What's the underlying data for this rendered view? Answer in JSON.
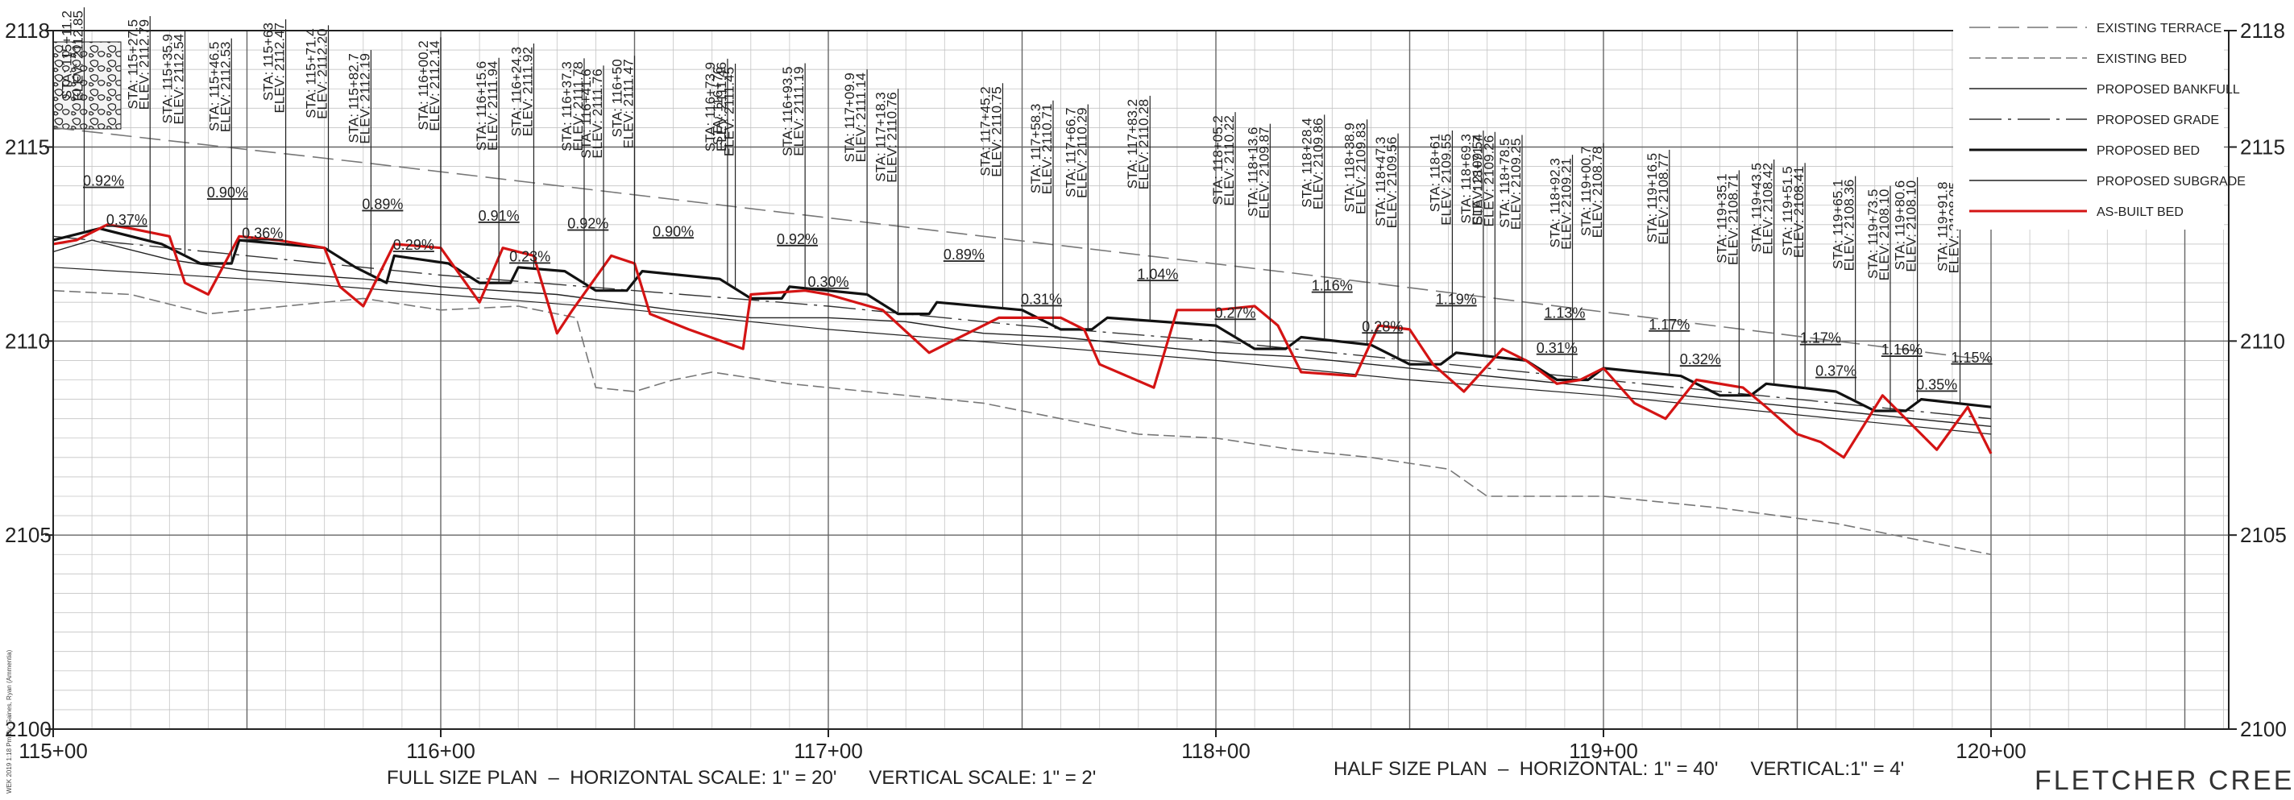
{
  "sheet": {
    "project_title": "FLETCHER CREEK",
    "scale_full": "FULL SIZE PLAN  –  HORIZONTAL SCALE: 1\" = 20'      VERTICAL SCALE: 1\" = 2'",
    "scale_half": "HALF SIZE PLAN  –  HORIZONTAL: 1\" = 40'      VERTICAL:1\" = 4'",
    "file_stamp": "WEK 2019 1:18 Pm By: Gaines, Ryan (Ammentia)"
  },
  "colors": {
    "proposed_bed": "#111111",
    "as_built_bed": "#d41414",
    "existing": "#777777",
    "grid_minor": "#c4c4c4",
    "grid_major": "#666666"
  },
  "chart_data": {
    "type": "line",
    "title": "",
    "xlabel": "",
    "ylabel": "",
    "xlim": [
      115.0,
      120.6
    ],
    "ylim": [
      2100,
      2118
    ],
    "x_ticks": [
      "115+00",
      "116+00",
      "117+00",
      "118+00",
      "119+00",
      "120+00"
    ],
    "y_ticks_left": [
      "2118",
      "2115",
      "2110",
      "2105",
      "2100"
    ],
    "y_ticks_right": [
      "2118",
      "2115",
      "2110",
      "2105",
      "2100"
    ],
    "grid": true,
    "legend_position": "top-right",
    "legend": [
      {
        "label": "EXISTING TERRACE",
        "series": "existing_terrace"
      },
      {
        "label": "EXISTING BED",
        "series": "existing_bed"
      },
      {
        "label": "PROPOSED BANKFULL",
        "series": "proposed_bankfull"
      },
      {
        "label": "PROPOSED GRADE",
        "series": "proposed_grade"
      },
      {
        "label": "PROPOSED BED",
        "series": "proposed_bed"
      },
      {
        "label": "PROPOSED SUBGRADE",
        "series": "proposed_subgrade"
      },
      {
        "label": "AS-BUILT BED",
        "series": "as_built_bed"
      }
    ],
    "series": [
      {
        "key": "existing_terrace",
        "name": "EXISTING TERRACE",
        "x": [
          115.0,
          115.8,
          116.6,
          117.4,
          118.2,
          119.0,
          119.6,
          120.0
        ],
        "y": [
          2115.5,
          2114.6,
          2113.65,
          2112.7,
          2111.75,
          2110.75,
          2110.0,
          2109.5
        ]
      },
      {
        "key": "existing_bed",
        "name": "EXISTING BED",
        "x": [
          115.0,
          115.2,
          115.4,
          115.6,
          115.8,
          116.0,
          116.2,
          116.35,
          116.4,
          116.5,
          116.6,
          116.7,
          116.9,
          117.2,
          117.4,
          117.6,
          117.8,
          118.0,
          118.2,
          118.4,
          118.6,
          118.7,
          119.0,
          119.3,
          119.6,
          119.8,
          120.0
        ],
        "y": [
          2111.3,
          2111.2,
          2110.7,
          2110.9,
          2111.1,
          2110.8,
          2110.9,
          2110.6,
          2108.8,
          2108.7,
          2109.0,
          2109.2,
          2108.9,
          2108.6,
          2108.4,
          2108.0,
          2107.6,
          2107.5,
          2107.2,
          2107.0,
          2106.7,
          2106.0,
          2106.0,
          2105.7,
          2105.3,
          2104.9,
          2104.5
        ]
      },
      {
        "key": "proposed_bankfull",
        "name": "PROPOSED BANKFULL",
        "x": [
          115.0,
          115.1,
          115.3,
          115.5,
          115.8,
          116.0,
          116.3,
          116.6,
          116.8,
          117.0,
          117.2,
          117.4,
          117.6,
          117.8,
          118.0,
          118.2,
          118.4,
          118.6,
          118.8,
          119.0,
          119.2,
          119.4,
          119.6,
          119.8,
          120.0
        ],
        "y": [
          2112.3,
          2112.6,
          2112.1,
          2111.8,
          2111.6,
          2111.4,
          2111.2,
          2110.8,
          2110.6,
          2110.6,
          2110.5,
          2110.2,
          2110.1,
          2109.9,
          2109.7,
          2109.6,
          2109.4,
          2109.2,
          2109.0,
          2108.8,
          2108.6,
          2108.4,
          2108.2,
          2108.0,
          2107.8
        ]
      },
      {
        "key": "proposed_grade",
        "name": "PROPOSED GRADE",
        "x": [
          115.0,
          115.5,
          116.0,
          116.5,
          117.0,
          117.5,
          118.0,
          118.5,
          119.0,
          119.5,
          120.0
        ],
        "y": [
          2112.7,
          2112.2,
          2111.7,
          2111.3,
          2110.9,
          2110.4,
          2110.0,
          2109.5,
          2109.0,
          2108.5,
          2108.0
        ]
      },
      {
        "key": "proposed_bed",
        "name": "PROPOSED BED",
        "x": [
          115.0,
          115.12,
          115.28,
          115.38,
          115.46,
          115.48,
          115.7,
          115.78,
          115.86,
          115.88,
          116.02,
          116.1,
          116.18,
          116.2,
          116.32,
          116.4,
          116.48,
          116.52,
          116.72,
          116.8,
          116.88,
          116.9,
          117.1,
          117.18,
          117.26,
          117.28,
          117.5,
          117.6,
          117.68,
          117.72,
          118.0,
          118.1,
          118.18,
          118.22,
          118.4,
          118.5,
          118.58,
          118.62,
          118.8,
          118.88,
          118.96,
          119.0,
          119.2,
          119.3,
          119.38,
          119.42,
          119.6,
          119.7,
          119.78,
          119.82,
          120.0
        ],
        "y": [
          2112.6,
          2112.9,
          2112.5,
          2112.0,
          2112.0,
          2112.6,
          2112.4,
          2111.9,
          2111.5,
          2112.2,
          2112.0,
          2111.5,
          2111.5,
          2111.9,
          2111.8,
          2111.3,
          2111.3,
          2111.8,
          2111.6,
          2111.1,
          2111.1,
          2111.4,
          2111.2,
          2110.7,
          2110.7,
          2111.0,
          2110.8,
          2110.3,
          2110.3,
          2110.6,
          2110.4,
          2109.8,
          2109.8,
          2110.1,
          2109.9,
          2109.4,
          2109.4,
          2109.7,
          2109.5,
          2109.0,
          2109.0,
          2109.3,
          2109.1,
          2108.6,
          2108.6,
          2108.9,
          2108.7,
          2108.2,
          2108.2,
          2108.5,
          2108.3
        ]
      },
      {
        "key": "proposed_subgrade",
        "name": "PROPOSED SUBGRADE",
        "x": [
          115.0,
          115.5,
          116.0,
          116.5,
          117.0,
          117.5,
          118.0,
          118.5,
          119.0,
          119.5,
          120.0
        ],
        "y": [
          2111.9,
          2111.6,
          2111.2,
          2110.8,
          2110.3,
          2109.9,
          2109.5,
          2109.0,
          2108.6,
          2108.1,
          2107.6
        ]
      },
      {
        "key": "as_built_bed",
        "name": "AS-BUILT BED",
        "x": [
          115.0,
          115.06,
          115.14,
          115.2,
          115.3,
          115.34,
          115.4,
          115.48,
          115.58,
          115.7,
          115.74,
          115.8,
          115.88,
          116.0,
          116.1,
          116.16,
          116.24,
          116.3,
          116.34,
          116.44,
          116.5,
          116.54,
          116.64,
          116.78,
          116.8,
          116.94,
          117.0,
          117.14,
          117.26,
          117.3,
          117.44,
          117.6,
          117.66,
          117.7,
          117.84,
          117.9,
          118.0,
          118.1,
          118.16,
          118.22,
          118.36,
          118.42,
          118.5,
          118.56,
          118.64,
          118.74,
          118.8,
          118.88,
          118.94,
          119.0,
          119.08,
          119.16,
          119.24,
          119.36,
          119.42,
          119.5,
          119.56,
          119.62,
          119.72,
          119.78,
          119.86,
          119.94,
          120.0
        ],
        "y": [
          2112.5,
          2112.6,
          2113.0,
          2112.9,
          2112.7,
          2111.5,
          2111.2,
          2112.7,
          2112.6,
          2112.4,
          2111.4,
          2110.9,
          2112.5,
          2112.4,
          2111.0,
          2112.4,
          2112.2,
          2110.2,
          2110.8,
          2112.2,
          2112.0,
          2110.7,
          2110.3,
          2109.8,
          2111.2,
          2111.3,
          2111.2,
          2110.8,
          2109.7,
          2109.9,
          2110.6,
          2110.6,
          2110.3,
          2109.4,
          2108.8,
          2110.8,
          2110.8,
          2110.9,
          2110.4,
          2109.2,
          2109.1,
          2110.4,
          2110.3,
          2109.4,
          2108.7,
          2109.8,
          2109.5,
          2108.9,
          2109.0,
          2109.3,
          2108.4,
          2108.0,
          2109.0,
          2108.8,
          2108.3,
          2107.6,
          2107.4,
          2107.0,
          2108.6,
          2108.0,
          2107.2,
          2108.3,
          2107.1
        ]
      }
    ],
    "slope_labels": [
      {
        "text": "0.92%",
        "x": 115.13,
        "y": 2114.0
      },
      {
        "text": "0.90%",
        "x": 115.45,
        "y": 2113.7
      },
      {
        "text": "0.89%",
        "x": 115.85,
        "y": 2113.4
      },
      {
        "text": "0.91%",
        "x": 116.15,
        "y": 2113.1
      },
      {
        "text": "0.92%",
        "x": 116.38,
        "y": 2112.9
      },
      {
        "text": "0.90%",
        "x": 116.6,
        "y": 2112.7
      },
      {
        "text": "0.92%",
        "x": 116.92,
        "y": 2112.5
      },
      {
        "text": "0.89%",
        "x": 117.35,
        "y": 2112.1
      },
      {
        "text": "1.04%",
        "x": 117.85,
        "y": 2111.6
      },
      {
        "text": "1.16%",
        "x": 118.3,
        "y": 2111.3
      },
      {
        "text": "1.19%",
        "x": 118.62,
        "y": 2110.95
      },
      {
        "text": "1.13%",
        "x": 118.9,
        "y": 2110.6
      },
      {
        "text": "1.17%",
        "x": 119.17,
        "y": 2110.3
      },
      {
        "text": "1.17%",
        "x": 119.56,
        "y": 2109.95
      },
      {
        "text": "1.16%",
        "x": 119.77,
        "y": 2109.65
      },
      {
        "text": "1.15%",
        "x": 119.95,
        "y": 2109.45
      },
      {
        "text": "0.37%",
        "x": 115.19,
        "y": 2113.0
      },
      {
        "text": "0.36%",
        "x": 115.54,
        "y": 2112.65
      },
      {
        "text": "0.29%",
        "x": 115.93,
        "y": 2112.35
      },
      {
        "text": "0.23%",
        "x": 116.23,
        "y": 2112.05
      },
      {
        "text": "0.30%",
        "x": 117.0,
        "y": 2111.4
      },
      {
        "text": "0.31%",
        "x": 117.55,
        "y": 2110.95
      },
      {
        "text": "0.27%",
        "x": 118.05,
        "y": 2110.6
      },
      {
        "text": "0.28%",
        "x": 118.43,
        "y": 2110.25
      },
      {
        "text": "0.31%",
        "x": 118.88,
        "y": 2109.7
      },
      {
        "text": "0.32%",
        "x": 119.25,
        "y": 2109.4
      },
      {
        "text": "0.37%",
        "x": 119.6,
        "y": 2109.1
      },
      {
        "text": "0.35%",
        "x": 119.86,
        "y": 2108.75
      }
    ],
    "annotations": [
      {
        "x": 115.08,
        "sta": "STA: 115+11.2",
        "elev": "ELEV: 2112.85"
      },
      {
        "x": 115.25,
        "sta": "STA: 115+27.5",
        "elev": "ELEV: 2112.79"
      },
      {
        "x": 115.34,
        "sta": "STA: 115+35.9",
        "elev": "ELEV: 2112.54"
      },
      {
        "x": 115.46,
        "sta": "STA: 115+46.5",
        "elev": "ELEV: 2112.53"
      },
      {
        "x": 115.6,
        "sta": "STA: 115+63",
        "elev": "ELEV: 2112.47"
      },
      {
        "x": 115.71,
        "sta": "STA: 115+71.4",
        "elev": "ELEV: 2112.20"
      },
      {
        "x": 115.82,
        "sta": "STA: 115+82.7",
        "elev": "ELEV: 2112.19"
      },
      {
        "x": 116.0,
        "sta": "STA: 116+00.2",
        "elev": "ELEV: 2112.14"
      },
      {
        "x": 116.15,
        "sta": "STA: 116+15.6",
        "elev": "ELEV: 2111.94"
      },
      {
        "x": 116.24,
        "sta": "STA: 116+24.3",
        "elev": "ELEV: 2111.92"
      },
      {
        "x": 116.37,
        "sta": "STA: 116+37.3",
        "elev": "ELEV: 2111.78"
      },
      {
        "x": 116.42,
        "sta": "STA: 116+41.6",
        "elev": "ELEV: 2111.76"
      },
      {
        "x": 116.5,
        "sta": "STA: 116+50",
        "elev": "ELEV: 2111.47"
      },
      {
        "x": 116.74,
        "sta": "STA: 116+73.9",
        "elev": "ELEV: 2111.46"
      },
      {
        "x": 116.76,
        "sta": "STA: 116+76",
        "elev": "ELEV: 2111.45"
      },
      {
        "x": 116.94,
        "sta": "STA: 116+93.5",
        "elev": "ELEV: 2111.19"
      },
      {
        "x": 117.1,
        "sta": "STA: 117+09.9",
        "elev": "ELEV: 2111.14"
      },
      {
        "x": 117.18,
        "sta": "STA: 117+18.3",
        "elev": "ELEV: 2110.76"
      },
      {
        "x": 117.45,
        "sta": "STA: 117+45.2",
        "elev": "ELEV: 2110.75"
      },
      {
        "x": 117.58,
        "sta": "STA: 117+58.3",
        "elev": "ELEV: 2110.71"
      },
      {
        "x": 117.67,
        "sta": "STA: 117+66.7",
        "elev": "ELEV: 2110.29"
      },
      {
        "x": 117.83,
        "sta": "STA: 117+83.2",
        "elev": "ELEV: 2110.28"
      },
      {
        "x": 118.05,
        "sta": "STA: 118+05.2",
        "elev": "ELEV: 2110.22"
      },
      {
        "x": 118.14,
        "sta": "STA: 118+13.6",
        "elev": "ELEV: 2109.87"
      },
      {
        "x": 118.28,
        "sta": "STA: 118+28.4",
        "elev": "ELEV: 2109.86"
      },
      {
        "x": 118.39,
        "sta": "STA: 118+38.9",
        "elev": "ELEV: 2109.83"
      },
      {
        "x": 118.47,
        "sta": "STA: 118+47.3",
        "elev": "ELEV: 2109.56"
      },
      {
        "x": 118.61,
        "sta": "STA: 118+61",
        "elev": "ELEV: 2109.55"
      },
      {
        "x": 118.69,
        "sta": "STA: 118+69.3",
        "elev": "ELEV: 2109.54"
      },
      {
        "x": 118.72,
        "sta": "STA: 118+71.7",
        "elev": "ELEV: 2109.26"
      },
      {
        "x": 118.79,
        "sta": "STA: 118+78.5",
        "elev": "ELEV: 2109.25"
      },
      {
        "x": 118.92,
        "sta": "STA: 118+92.3",
        "elev": "ELEV: 2109.21"
      },
      {
        "x": 119.0,
        "sta": "STA: 119+00.7",
        "elev": "ELEV: 2108.78"
      },
      {
        "x": 119.17,
        "sta": "STA: 119+16.5",
        "elev": "ELEV: 2108.77"
      },
      {
        "x": 119.35,
        "sta": "STA: 119+35.1",
        "elev": "ELEV: 2108.71"
      },
      {
        "x": 119.44,
        "sta": "STA: 119+43.5",
        "elev": "ELEV: 2108.42"
      },
      {
        "x": 119.52,
        "sta": "STA: 119+51.5",
        "elev": "ELEV: 2108.41"
      },
      {
        "x": 119.65,
        "sta": "STA: 119+65.1",
        "elev": "ELEV: 2108.36"
      },
      {
        "x": 119.74,
        "sta": "STA: 119+73.5",
        "elev": "ELEV: 2108.10"
      },
      {
        "x": 119.81,
        "sta": "STA: 119+80.6",
        "elev": "ELEV: 2108.10"
      },
      {
        "x": 119.92,
        "sta": "STA: 119+91.8",
        "elev": "ELEV: 2108.05"
      }
    ]
  }
}
